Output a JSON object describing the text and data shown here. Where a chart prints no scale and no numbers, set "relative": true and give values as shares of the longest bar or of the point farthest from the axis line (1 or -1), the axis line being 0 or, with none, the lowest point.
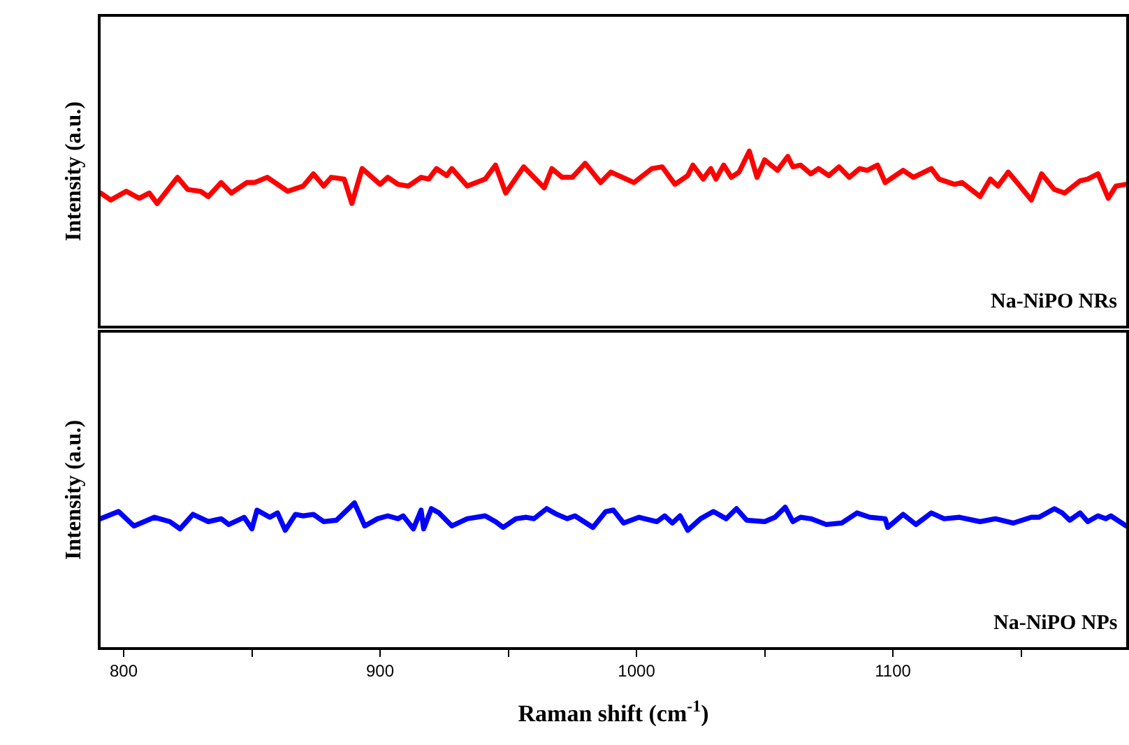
{
  "chart_data": [
    {
      "type": "line",
      "relative": true,
      "ylabel": "Intensity (a.u.)",
      "annotations": [
        "Na-NiPO NRs"
      ],
      "tick_labels": false,
      "xlim": [
        791,
        1191
      ],
      "x": [
        791,
        795,
        801,
        806,
        810,
        813,
        821,
        825,
        830,
        833,
        838,
        842,
        848,
        851,
        856,
        864,
        870,
        874,
        878,
        881,
        886,
        889,
        893,
        900,
        903,
        907,
        911,
        916,
        919,
        922,
        926,
        928,
        934,
        941,
        945,
        949,
        956,
        964,
        967,
        971,
        975,
        980,
        986,
        990,
        999,
        1006,
        1010,
        1015,
        1020,
        1022,
        1026,
        1029,
        1031,
        1034,
        1037,
        1040,
        1044,
        1047,
        1050,
        1055,
        1059,
        1061,
        1064,
        1068,
        1071,
        1075,
        1079,
        1083,
        1087,
        1090,
        1094,
        1097,
        1104,
        1108,
        1115,
        1118,
        1124,
        1127,
        1134,
        1138,
        1141,
        1145,
        1149,
        1154,
        1158,
        1163,
        1167,
        1173,
        1176,
        1180,
        1184,
        1187,
        1191
      ],
      "series": [
        {
          "color": "#ff0000",
          "values": [
            0.76,
            0.72,
            0.77,
            0.73,
            0.76,
            0.7,
            0.85,
            0.78,
            0.77,
            0.74,
            0.82,
            0.76,
            0.82,
            0.82,
            0.85,
            0.77,
            0.8,
            0.87,
            0.8,
            0.85,
            0.84,
            0.7,
            0.9,
            0.81,
            0.85,
            0.81,
            0.8,
            0.85,
            0.84,
            0.9,
            0.86,
            0.9,
            0.8,
            0.84,
            0.92,
            0.76,
            0.91,
            0.79,
            0.9,
            0.85,
            0.85,
            0.93,
            0.82,
            0.88,
            0.82,
            0.9,
            0.91,
            0.81,
            0.86,
            0.92,
            0.84,
            0.9,
            0.84,
            0.92,
            0.85,
            0.88,
            1.0,
            0.85,
            0.95,
            0.89,
            0.97,
            0.91,
            0.92,
            0.87,
            0.9,
            0.86,
            0.91,
            0.85,
            0.9,
            0.89,
            0.92,
            0.82,
            0.89,
            0.85,
            0.9,
            0.84,
            0.81,
            0.82,
            0.74,
            0.84,
            0.8,
            0.88,
            0.81,
            0.72,
            0.87,
            0.78,
            0.76,
            0.83,
            0.84,
            0.87,
            0.73,
            0.8,
            0.81
          ]
        }
      ]
    },
    {
      "type": "line",
      "relative": true,
      "ylabel": "Intensity (a.u.)",
      "xlabel": "Raman shift (cm$^{-1}$)",
      "annotations": [
        "Na-NiPO NPs"
      ],
      "tick_labels": "x",
      "xlim": [
        791,
        1191
      ],
      "xticks": [
        800,
        {
          "value": 850,
          "label": null
        },
        900,
        {
          "value": 950,
          "label": null
        },
        1000,
        {
          "value": 1050,
          "label": null
        },
        1100,
        {
          "value": 1150,
          "label": null
        }
      ],
      "x": [
        791,
        798,
        804,
        812,
        818,
        822,
        827,
        833,
        838,
        841,
        847,
        850,
        852,
        857,
        860,
        863,
        867,
        870,
        874,
        878,
        883,
        890,
        894,
        899,
        903,
        907,
        909,
        913,
        916,
        917,
        920,
        923,
        928,
        934,
        941,
        945,
        948,
        953,
        957,
        960,
        965,
        969,
        973,
        976,
        983,
        988,
        991,
        995,
        1001,
        1008,
        1011,
        1014,
        1017,
        1020,
        1025,
        1030,
        1035,
        1039,
        1043,
        1050,
        1054,
        1058,
        1061,
        1064,
        1068,
        1074,
        1080,
        1086,
        1091,
        1097,
        1098,
        1104,
        1109,
        1115,
        1120,
        1126,
        1134,
        1140,
        1147,
        1154,
        1157,
        1163,
        1166,
        1169,
        1173,
        1176,
        1180,
        1183,
        1185,
        1191
      ],
      "series": [
        {
          "color": "#0000ff",
          "values": [
            0.89,
            0.94,
            0.84,
            0.9,
            0.87,
            0.82,
            0.92,
            0.87,
            0.89,
            0.85,
            0.9,
            0.82,
            0.95,
            0.9,
            0.93,
            0.81,
            0.92,
            0.91,
            0.92,
            0.87,
            0.88,
            1.0,
            0.84,
            0.89,
            0.91,
            0.89,
            0.91,
            0.82,
            0.95,
            0.82,
            0.96,
            0.93,
            0.84,
            0.89,
            0.91,
            0.87,
            0.83,
            0.89,
            0.9,
            0.89,
            0.96,
            0.92,
            0.89,
            0.91,
            0.83,
            0.94,
            0.95,
            0.86,
            0.9,
            0.87,
            0.91,
            0.86,
            0.91,
            0.81,
            0.89,
            0.94,
            0.89,
            0.96,
            0.88,
            0.87,
            0.9,
            0.97,
            0.87,
            0.9,
            0.89,
            0.85,
            0.86,
            0.93,
            0.9,
            0.89,
            0.83,
            0.92,
            0.85,
            0.93,
            0.89,
            0.9,
            0.87,
            0.89,
            0.86,
            0.9,
            0.9,
            0.96,
            0.93,
            0.88,
            0.93,
            0.87,
            0.91,
            0.89,
            0.91,
            0.84
          ]
        }
      ]
    }
  ]
}
